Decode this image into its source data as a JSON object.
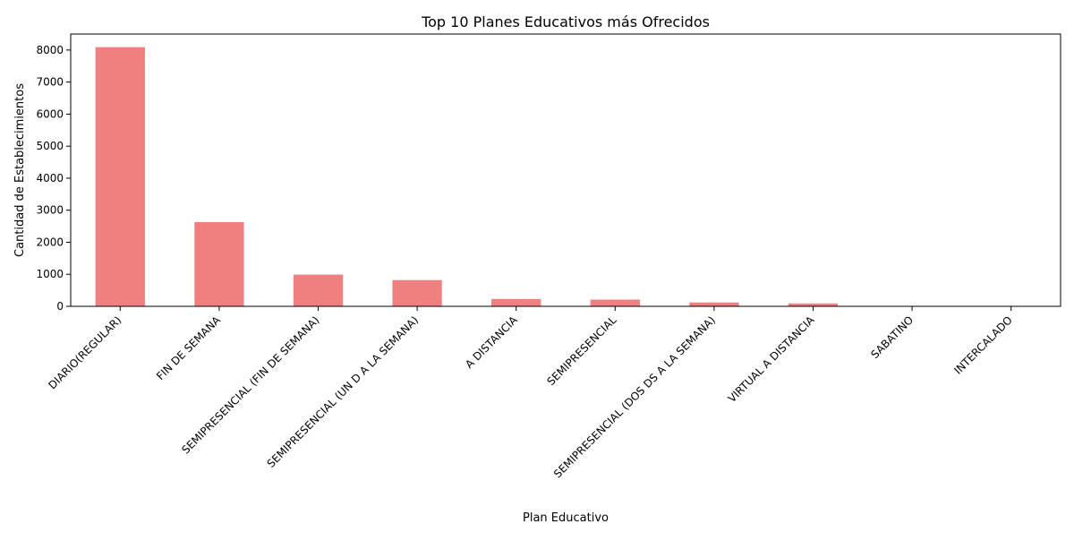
{
  "chart_data": {
    "type": "bar",
    "title": "Top 10 Planes Educativos más Ofrecidos",
    "xlabel": "Plan Educativo",
    "ylabel": "Cantidad de Establecimientos",
    "categories": [
      "DIARIO(REGULAR)",
      "FIN DE SEMANA",
      "SEMIPRESENCIAL (FIN DE SEMANA)",
      "SEMIPRESENCIAL (UN D A LA SEMANA)",
      "A DISTANCIA",
      "SEMIPRESENCIAL",
      "SEMIPRESENCIAL (DOS DS A LA SEMANA)",
      "VIRTUAL A DISTANCIA",
      "SABATINO",
      "INTERCALADO"
    ],
    "values": [
      8090,
      2630,
      990,
      820,
      230,
      210,
      120,
      90,
      8,
      5
    ],
    "ylim": [
      0,
      8500
    ],
    "yticks": [
      0,
      1000,
      2000,
      3000,
      4000,
      5000,
      6000,
      7000,
      8000
    ],
    "bar_color": "#f08080",
    "grid": false,
    "legend": "none"
  }
}
